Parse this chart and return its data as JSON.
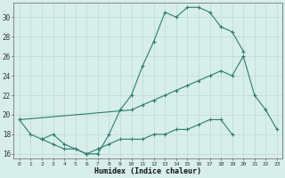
{
  "xlabel": "Humidex (Indice chaleur)",
  "xlim": [
    -0.5,
    23.5
  ],
  "ylim": [
    15.5,
    31.5
  ],
  "xtick_labels": [
    "0",
    "1",
    "2",
    "3",
    "4",
    "5",
    "6",
    "7",
    "8",
    "9",
    "10",
    "11",
    "12",
    "13",
    "14",
    "15",
    "16",
    "17",
    "18",
    "19",
    "20",
    "21",
    "22",
    "23"
  ],
  "ytick_values": [
    16,
    18,
    20,
    22,
    24,
    26,
    28,
    30
  ],
  "line_color": "#2a7d6e",
  "bg_color": "#d8eeeb",
  "grid_color": "#c0ddd9",
  "line1_y": [
    19.5,
    18.0,
    17.5,
    18.0,
    17.0,
    16.5,
    16.0,
    16.0,
    18.0,
    20.5,
    22.0,
    25.0,
    27.5,
    30.5,
    30.0,
    31.0,
    31.0,
    30.5,
    29.0,
    28.5,
    26.5,
    null,
    null,
    null
  ],
  "line2_y": [
    19.5,
    null,
    null,
    null,
    null,
    null,
    null,
    null,
    null,
    null,
    20.5,
    21.0,
    21.5,
    22.0,
    22.5,
    23.0,
    23.5,
    24.0,
    24.5,
    24.0,
    26.0,
    22.0,
    20.5,
    18.5
  ],
  "line3_y": [
    null,
    null,
    17.5,
    17.0,
    16.5,
    16.5,
    16.0,
    16.5,
    17.0,
    17.5,
    17.5,
    17.5,
    18.0,
    18.0,
    18.5,
    18.5,
    19.0,
    19.5,
    19.5,
    18.0,
    null,
    null,
    null,
    null
  ]
}
